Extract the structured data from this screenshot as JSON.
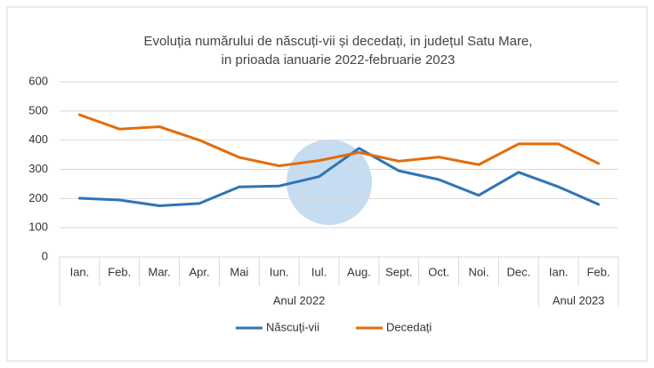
{
  "chart_data": {
    "type": "line",
    "title": [
      "Evoluția numărului de născuți-vii și decedați, in județul Satu Mare,",
      "in prioada ianuarie 2022-februarie 2023"
    ],
    "category_groups": [
      {
        "label": "Anul 2022",
        "categories": [
          "Ian.",
          "Feb.",
          "Mar.",
          "Apr.",
          "Mai",
          "Iun.",
          "Iul.",
          "Aug.",
          "Sept.",
          "Oct.",
          "Noi.",
          "Dec."
        ]
      },
      {
        "label": "Anul 2023",
        "categories": [
          "Ian.",
          "Feb."
        ]
      }
    ],
    "series": [
      {
        "name": "Născuți-vii",
        "color": "#2e75b6",
        "values": [
          201,
          195,
          175,
          183,
          240,
          243,
          275,
          372,
          295,
          265,
          211,
          290,
          240,
          180
        ]
      },
      {
        "name": "Decedați",
        "color": "#e36c0a",
        "values": [
          487,
          438,
          446,
          400,
          341,
          312,
          330,
          358,
          328,
          342,
          316,
          387,
          387,
          320
        ]
      }
    ],
    "ylim": [
      0,
      600
    ],
    "yticks": [
      0,
      100,
      200,
      300,
      400,
      500,
      600
    ],
    "grid": true,
    "legend": "bottom"
  }
}
